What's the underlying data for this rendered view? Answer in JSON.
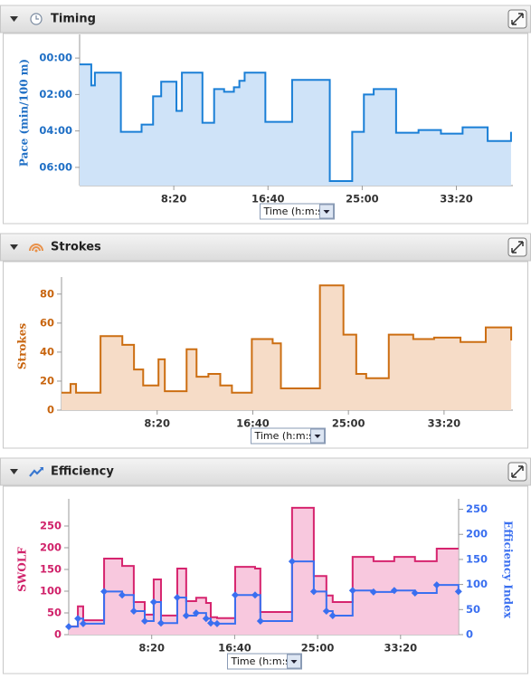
{
  "chart_data": [
    {
      "type": "line",
      "step": true,
      "title": "Timing",
      "x_label": "Time (h:m:s)",
      "ylabel": "Pace (min/100 m)",
      "y_inverted": true,
      "xlim": [
        0,
        2300
      ],
      "xticks": [
        {
          "value": 500,
          "label": "8:20"
        },
        {
          "value": 1000,
          "label": "16:40"
        },
        {
          "value": 1500,
          "label": "25:00"
        },
        {
          "value": 2000,
          "label": "33:20"
        }
      ],
      "ylim": [
        -60,
        420
      ],
      "yticks": [
        {
          "value": 0,
          "label": "00:00"
        },
        {
          "value": 120,
          "label": "02:00"
        },
        {
          "value": 240,
          "label": "04:00"
        },
        {
          "value": 360,
          "label": "06:00"
        }
      ],
      "axis_color": "#1f6fc5",
      "x": [
        0,
        62,
        81,
        219,
        329,
        390,
        433,
        514,
        543,
        652,
        714,
        767,
        819,
        848,
        876,
        986,
        1128,
        1328,
        1447,
        1509,
        1561,
        1680,
        1799,
        1918,
        2033,
        2166,
        2290
      ],
      "series": [
        {
          "color": "#1a7fd6",
          "fill": "#cfe3f8",
          "values": [
            21,
            90,
            48,
            243,
            219,
            126,
            78,
            174,
            48,
            213,
            102,
            111,
            96,
            75,
            48,
            210,
            72,
            405,
            243,
            120,
            102,
            246,
            237,
            249,
            228,
            273,
            243
          ]
        }
      ]
    },
    {
      "type": "line",
      "step": true,
      "title": "Strokes",
      "x_label": "Time (h:m:s)",
      "ylabel": "Strokes",
      "xlim": [
        0,
        2360
      ],
      "xticks": [
        {
          "value": 500,
          "label": "8:20"
        },
        {
          "value": 1000,
          "label": "16:40"
        },
        {
          "value": 1500,
          "label": "25:00"
        },
        {
          "value": 2000,
          "label": "33:20"
        }
      ],
      "ylim": [
        0,
        88
      ],
      "yticks": [
        0,
        20,
        40,
        60,
        80
      ],
      "axis_color": "#c8650f",
      "x": [
        0,
        47,
        76,
        204,
        318,
        379,
        427,
        507,
        540,
        654,
        706,
        768,
        830,
        891,
        995,
        1104,
        1147,
        1351,
        1474,
        1541,
        1593,
        1711,
        1839,
        1948,
        2086,
        2218,
        2351
      ],
      "series": [
        {
          "color": "#cc6e12",
          "fill": "#f6dcc7",
          "values": [
            12,
            18,
            12,
            51,
            45,
            28,
            17,
            35,
            13,
            42,
            23,
            25,
            17,
            12,
            49,
            46,
            15,
            86,
            52,
            25,
            22,
            52,
            49,
            50,
            47,
            57,
            48
          ]
        }
      ]
    },
    {
      "type": "line",
      "step": true,
      "title": "Efficiency",
      "x_label": "Time (h:m:s)",
      "ylabel": "SWOLF",
      "y2label": "Efficiency Index",
      "xlim": [
        0,
        2350
      ],
      "xticks": [
        {
          "value": 500,
          "label": "8:20"
        },
        {
          "value": 1000,
          "label": "16:40"
        },
        {
          "value": 1500,
          "label": "25:00"
        },
        {
          "value": 2000,
          "label": "33:20"
        }
      ],
      "ylim": [
        0,
        300
      ],
      "yticks": [
        0,
        50,
        100,
        150,
        200,
        250
      ],
      "y2lim": [
        0,
        260
      ],
      "y2ticks": [
        0,
        50,
        100,
        150,
        200,
        250
      ],
      "axis_color": "#d0226a",
      "axis2_color": "#3a6ff0",
      "x": [
        0,
        55,
        87,
        213,
        322,
        392,
        458,
        512,
        556,
        654,
        708,
        768,
        828,
        856,
        894,
        1003,
        1123,
        1155,
        1346,
        1477,
        1553,
        1591,
        1711,
        1837,
        1962,
        2087,
        2218,
        2349
      ],
      "series": [
        {
          "color": "#d6246e",
          "fill": "#f8c8de",
          "values": [
            19,
            65,
            33,
            175,
            158,
            75,
            46,
            127,
            44,
            152,
            77,
            85,
            73,
            40,
            38,
            156,
            152,
            52,
            292,
            135,
            90,
            75,
            179,
            169,
            179,
            169,
            198,
            198
          ]
        },
        {
          "color": "#3a6ff0",
          "axis": "y2",
          "markers": true,
          "values": [
            16,
            32,
            22,
            86,
            79,
            47,
            27,
            65,
            23,
            74,
            38,
            43,
            32,
            23,
            22,
            79,
            79,
            27,
            146,
            86,
            47,
            38,
            88,
            85,
            88,
            83,
            99,
            86
          ]
        }
      ]
    }
  ]
}
